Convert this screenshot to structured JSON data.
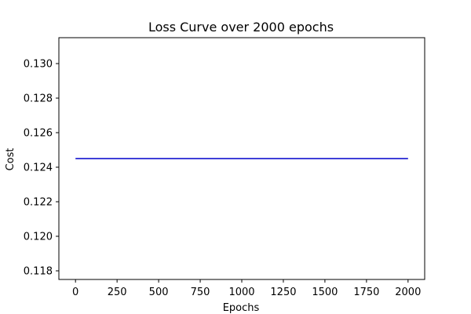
{
  "chart_data": {
    "type": "line",
    "title": "Loss Curve over 2000 epochs",
    "xlabel": "Epochs",
    "ylabel": "Cost",
    "xlim": [
      -100,
      2100
    ],
    "ylim": [
      0.1175,
      0.1315
    ],
    "xticks": [
      0,
      250,
      500,
      750,
      1000,
      1250,
      1500,
      1750,
      2000
    ],
    "yticks": [
      0.118,
      0.12,
      0.122,
      0.124,
      0.126,
      0.128,
      0.13
    ],
    "yticks_labels": [
      "0.118",
      "0.120",
      "0.122",
      "0.124",
      "0.126",
      "0.128",
      "0.130"
    ],
    "grid": false,
    "series": [
      {
        "color": "#0000cc",
        "x": [
          0,
          2000
        ],
        "y": [
          0.1245,
          0.1245
        ]
      }
    ]
  }
}
